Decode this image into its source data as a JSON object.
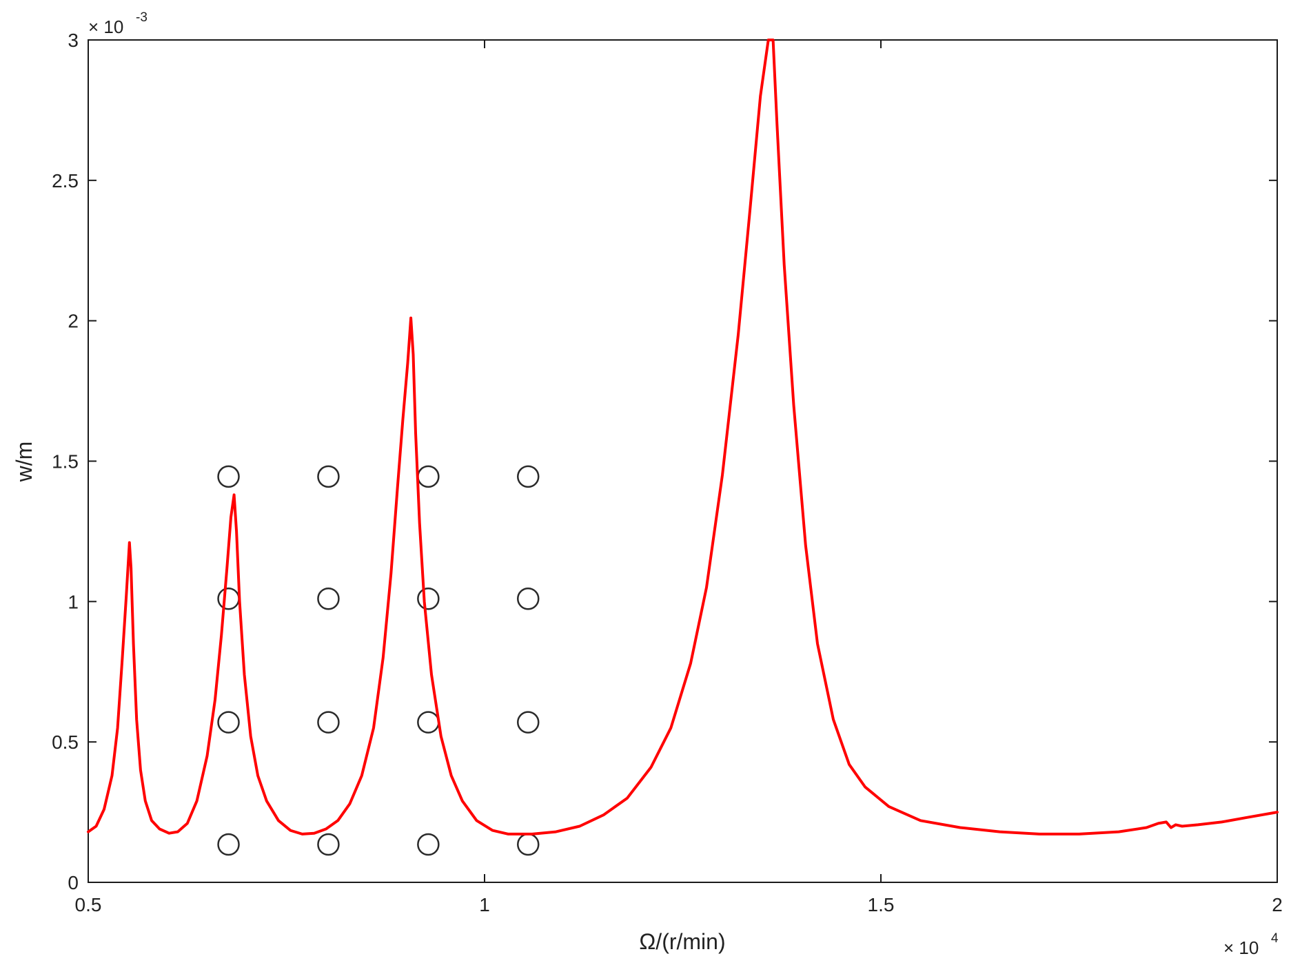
{
  "chart_data": {
    "type": "line",
    "title": "",
    "xlabel": "Ω/(r/min)",
    "ylabel": "w/m",
    "x_multiplier": {
      "base": "× 10",
      "exp": "4"
    },
    "y_multiplier": {
      "base": "× 10",
      "exp": "-3"
    },
    "xlim": [
      0.5,
      2
    ],
    "ylim": [
      0,
      3
    ],
    "xticks": [
      0.5,
      1,
      1.5,
      2
    ],
    "xtick_labels": [
      "0.5",
      "1",
      "1.5",
      "2"
    ],
    "yticks": [
      0,
      0.5,
      1,
      1.5,
      2,
      2.5,
      3
    ],
    "ytick_labels": [
      "0",
      "0.5",
      "1",
      "1.5",
      "2",
      "2.5",
      "3"
    ],
    "grid": false,
    "line_color": "#ff0000",
    "series": [
      {
        "points": [
          [
            0.5,
            0.18
          ],
          [
            0.51,
            0.2
          ],
          [
            0.52,
            0.26
          ],
          [
            0.53,
            0.38
          ],
          [
            0.537,
            0.55
          ],
          [
            0.543,
            0.8
          ],
          [
            0.548,
            1.02
          ],
          [
            0.552,
            1.21
          ],
          [
            0.554,
            1.12
          ],
          [
            0.557,
            0.85
          ],
          [
            0.561,
            0.58
          ],
          [
            0.566,
            0.4
          ],
          [
            0.572,
            0.29
          ],
          [
            0.58,
            0.22
          ],
          [
            0.59,
            0.19
          ],
          [
            0.602,
            0.175
          ],
          [
            0.613,
            0.18
          ],
          [
            0.625,
            0.21
          ],
          [
            0.637,
            0.29
          ],
          [
            0.65,
            0.45
          ],
          [
            0.66,
            0.65
          ],
          [
            0.668,
            0.88
          ],
          [
            0.675,
            1.12
          ],
          [
            0.68,
            1.3
          ],
          [
            0.684,
            1.38
          ],
          [
            0.687,
            1.25
          ],
          [
            0.691,
            1.0
          ],
          [
            0.697,
            0.74
          ],
          [
            0.705,
            0.52
          ],
          [
            0.714,
            0.38
          ],
          [
            0.725,
            0.29
          ],
          [
            0.74,
            0.22
          ],
          [
            0.755,
            0.185
          ],
          [
            0.77,
            0.172
          ],
          [
            0.785,
            0.175
          ],
          [
            0.8,
            0.19
          ],
          [
            0.815,
            0.22
          ],
          [
            0.83,
            0.28
          ],
          [
            0.845,
            0.38
          ],
          [
            0.86,
            0.55
          ],
          [
            0.872,
            0.8
          ],
          [
            0.882,
            1.1
          ],
          [
            0.89,
            1.4
          ],
          [
            0.897,
            1.65
          ],
          [
            0.903,
            1.85
          ],
          [
            0.907,
            2.01
          ],
          [
            0.91,
            1.88
          ],
          [
            0.913,
            1.6
          ],
          [
            0.918,
            1.28
          ],
          [
            0.924,
            1.0
          ],
          [
            0.933,
            0.74
          ],
          [
            0.945,
            0.52
          ],
          [
            0.958,
            0.38
          ],
          [
            0.972,
            0.29
          ],
          [
            0.99,
            0.22
          ],
          [
            1.01,
            0.185
          ],
          [
            1.03,
            0.172
          ],
          [
            1.06,
            0.172
          ],
          [
            1.09,
            0.18
          ],
          [
            1.12,
            0.2
          ],
          [
            1.15,
            0.24
          ],
          [
            1.18,
            0.3
          ],
          [
            1.21,
            0.41
          ],
          [
            1.235,
            0.55
          ],
          [
            1.26,
            0.78
          ],
          [
            1.28,
            1.05
          ],
          [
            1.3,
            1.45
          ],
          [
            1.32,
            1.95
          ],
          [
            1.335,
            2.4
          ],
          [
            1.348,
            2.8
          ],
          [
            1.358,
            3.0
          ],
          [
            1.364,
            3.0
          ],
          [
            1.369,
            2.7
          ],
          [
            1.378,
            2.2
          ],
          [
            1.39,
            1.7
          ],
          [
            1.405,
            1.2
          ],
          [
            1.42,
            0.85
          ],
          [
            1.44,
            0.58
          ],
          [
            1.46,
            0.42
          ],
          [
            1.48,
            0.34
          ],
          [
            1.51,
            0.27
          ],
          [
            1.55,
            0.22
          ],
          [
            1.6,
            0.195
          ],
          [
            1.65,
            0.18
          ],
          [
            1.7,
            0.172
          ],
          [
            1.75,
            0.172
          ],
          [
            1.8,
            0.18
          ],
          [
            1.835,
            0.195
          ],
          [
            1.85,
            0.21
          ],
          [
            1.86,
            0.215
          ],
          [
            1.866,
            0.195
          ],
          [
            1.872,
            0.205
          ],
          [
            1.88,
            0.2
          ],
          [
            1.9,
            0.205
          ],
          [
            1.93,
            0.215
          ],
          [
            1.96,
            0.23
          ],
          [
            2.0,
            0.25
          ]
        ]
      }
    ],
    "markers": {
      "shape": "open-circle",
      "x": [
        0.677,
        0.803,
        0.929,
        1.055
      ],
      "y": [
        0.135,
        0.57,
        1.01,
        1.445
      ]
    }
  }
}
